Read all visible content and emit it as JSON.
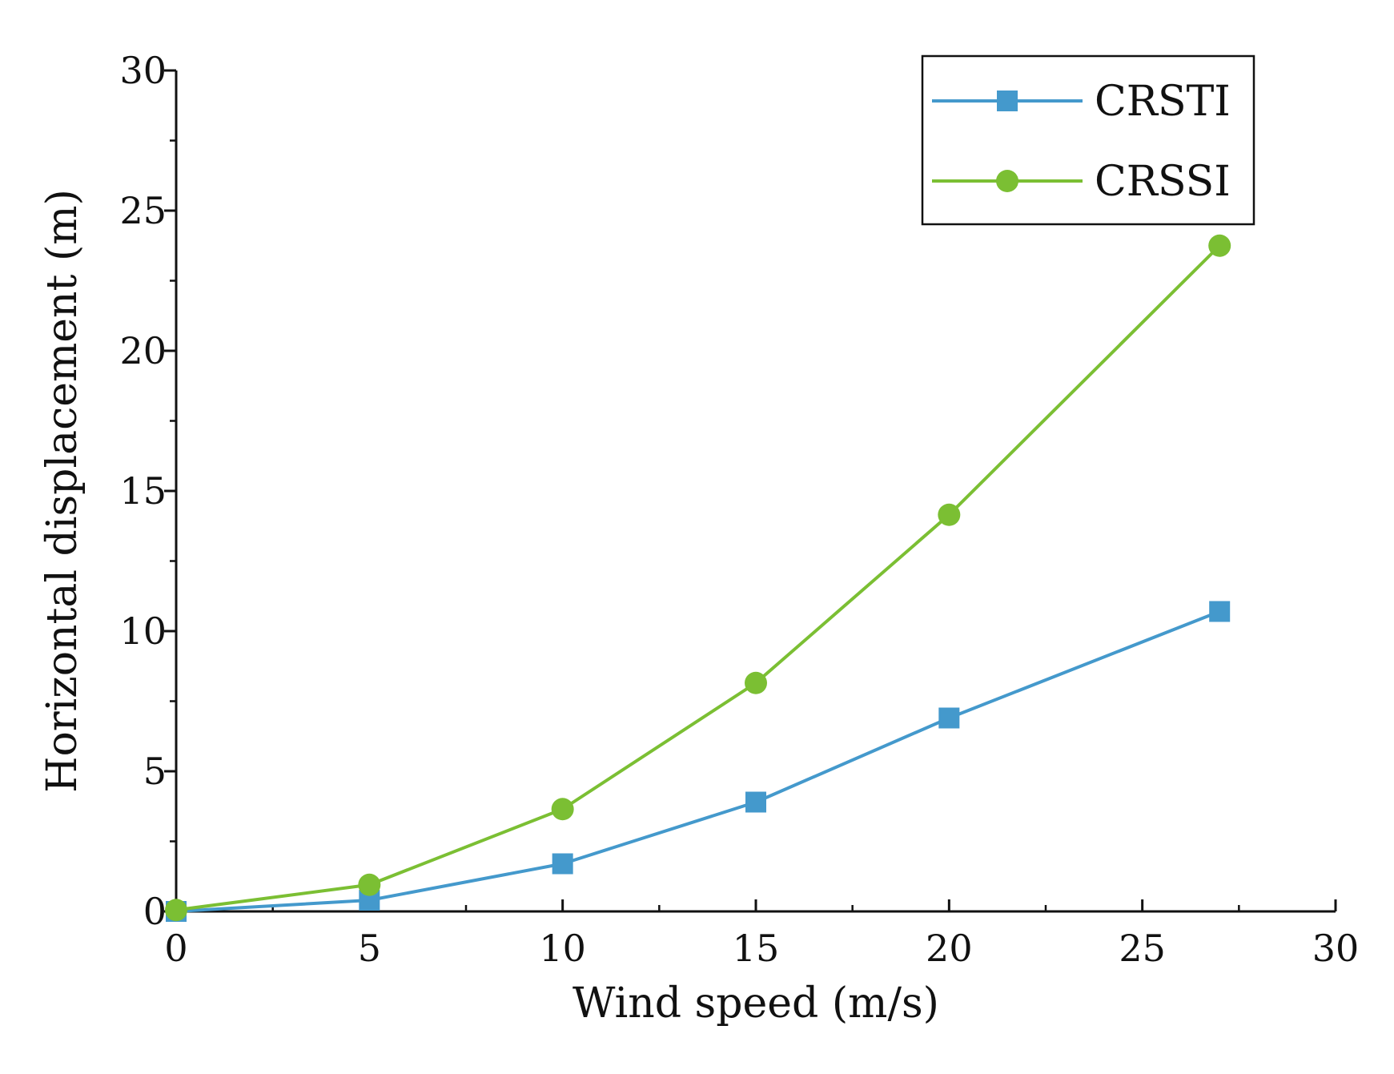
{
  "chart_data": {
    "type": "line",
    "title": "",
    "xlabel": "Wind speed (m/s)",
    "ylabel": "Horizontal displacement (m)",
    "xlim": [
      0,
      30
    ],
    "ylim": [
      0,
      30
    ],
    "xticks": [
      0,
      5,
      10,
      15,
      20,
      25,
      30
    ],
    "yticks": [
      0,
      5,
      10,
      15,
      20,
      25,
      30
    ],
    "x_tick_labels": [
      "0",
      "5",
      "10",
      "15",
      "20",
      "25",
      "30"
    ],
    "y_tick_labels": [
      "0",
      "5",
      "10",
      "15",
      "20",
      "25",
      "30"
    ],
    "grid": false,
    "legend_position": "top-right",
    "series": [
      {
        "name": "CRSTI",
        "marker": "square",
        "color": "#4499cc",
        "x": [
          0,
          5,
          10,
          15,
          20,
          27
        ],
        "values": [
          0.0,
          0.4,
          1.7,
          3.9,
          6.9,
          10.7
        ]
      },
      {
        "name": "CRSSI",
        "marker": "circle",
        "color": "#7bbf33",
        "x": [
          0,
          5,
          10,
          15,
          20,
          27
        ],
        "values": [
          0.05,
          0.95,
          3.65,
          8.15,
          14.15,
          23.75
        ]
      }
    ]
  }
}
